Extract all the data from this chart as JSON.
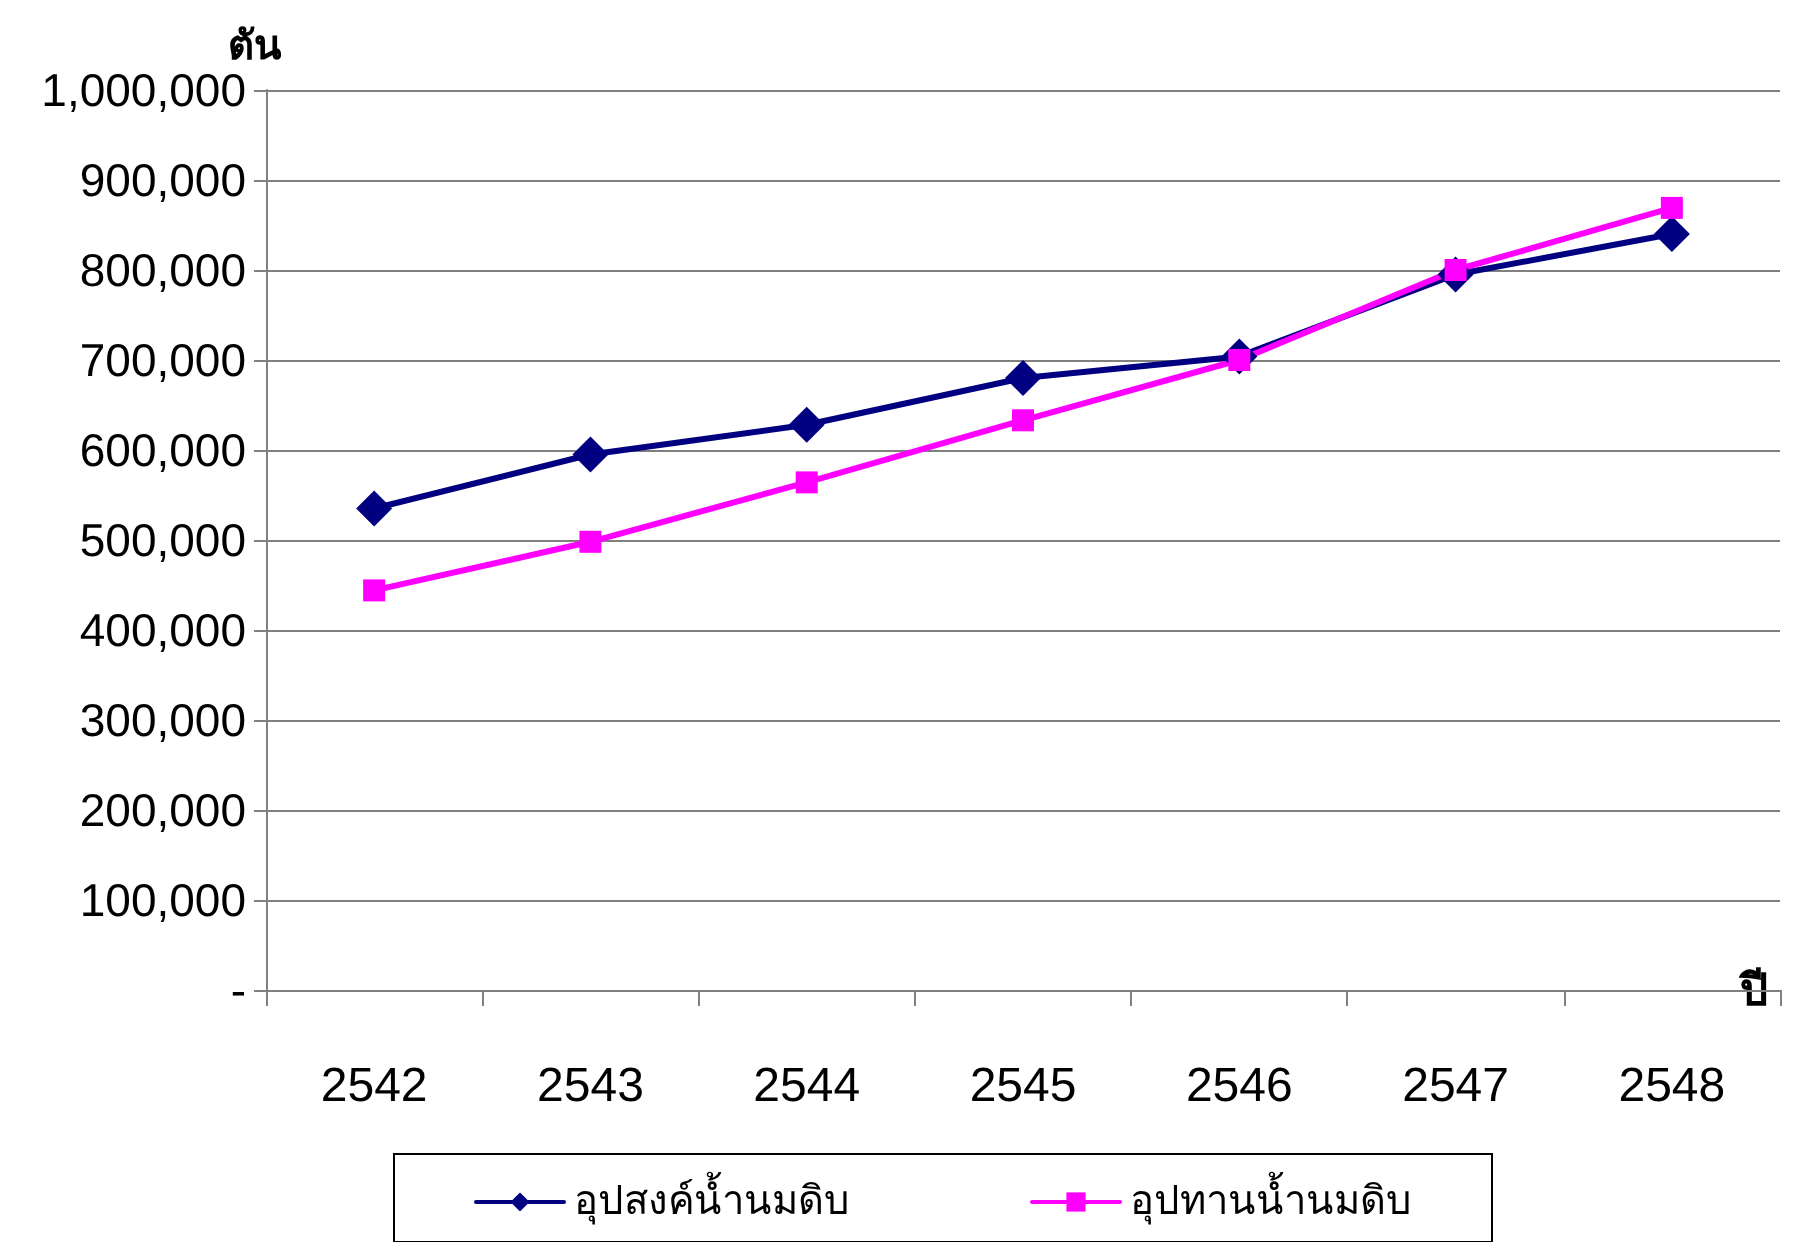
{
  "chart_data": {
    "type": "line",
    "xlabel": "ปี",
    "ylabel": "ตัน",
    "categories": [
      "2542",
      "2543",
      "2544",
      "2545",
      "2546",
      "2547",
      "2548"
    ],
    "series": [
      {
        "name": "อุปสงค์น้ำนมดิบ",
        "color": "#000080",
        "marker": "diamond",
        "values": [
          535000,
          595000,
          628000,
          680000,
          704000,
          795000,
          840000
        ]
      },
      {
        "name": "อุปทานน้ำนมดิบ",
        "color": "#ff00ff",
        "marker": "square",
        "values": [
          444000,
          498000,
          564000,
          633000,
          700000,
          800000,
          869000
        ]
      }
    ],
    "ylim": [
      0,
      1000000
    ],
    "yticks": [
      {
        "value": 0,
        "label": "-"
      },
      {
        "value": 100000,
        "label": "100,000"
      },
      {
        "value": 200000,
        "label": "200,000"
      },
      {
        "value": 300000,
        "label": "300,000"
      },
      {
        "value": 400000,
        "label": "400,000"
      },
      {
        "value": 500000,
        "label": "500,000"
      },
      {
        "value": 600000,
        "label": "600,000"
      },
      {
        "value": 700000,
        "label": "700,000"
      },
      {
        "value": 800000,
        "label": "800,000"
      },
      {
        "value": 900000,
        "label": "900,000"
      },
      {
        "value": 1000000,
        "label": "1,000,000"
      }
    ],
    "grid": "y",
    "legend": "bottom",
    "line_style": "solid"
  }
}
